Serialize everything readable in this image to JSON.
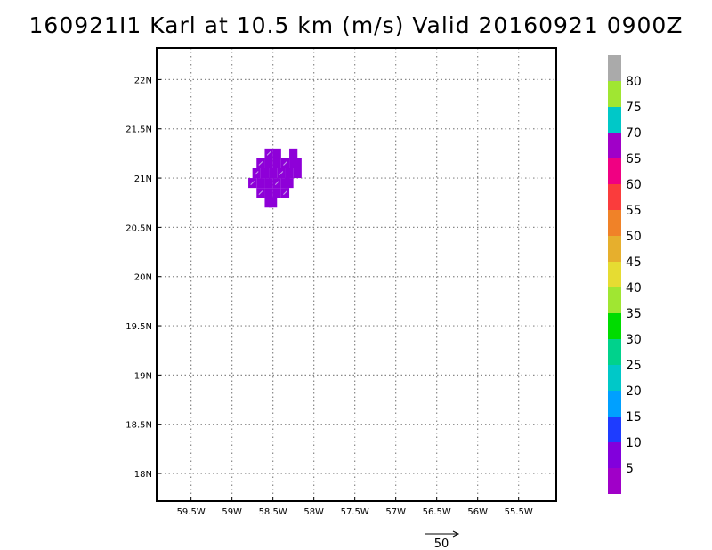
{
  "title": "160921I1 Karl at 10.5 km (m/s) Valid 20160921 0900Z",
  "chart_data": {
    "type": "heatmap",
    "title": "160921I1 Karl at 10.5 km (m/s) Valid 20160921 0900Z",
    "x_ticks": [
      "59.5W",
      "59W",
      "58.5W",
      "58W",
      "57.5W",
      "57W",
      "56.5W",
      "56W",
      "55.5W"
    ],
    "x_tick_values": [
      -59.5,
      -59.0,
      -58.5,
      -58.0,
      -57.5,
      -57.0,
      -56.5,
      -56.0,
      -55.5
    ],
    "y_ticks": [
      "22N",
      "21.5N",
      "21N",
      "20.5N",
      "20N",
      "19.5N",
      "19N",
      "18.5N",
      "18N"
    ],
    "y_tick_values": [
      22.0,
      21.5,
      21.0,
      20.5,
      20.0,
      19.5,
      19.0,
      18.5,
      18.0
    ],
    "xlim": [
      -59.92,
      -55.04
    ],
    "ylim": [
      17.72,
      22.32
    ],
    "grid": true,
    "colorbar": {
      "labels": [
        "5",
        "10",
        "15",
        "20",
        "25",
        "30",
        "35",
        "40",
        "45",
        "50",
        "55",
        "60",
        "65",
        "70",
        "75",
        "80"
      ],
      "colors": [
        "#a000c8",
        "#8200dc",
        "#1e3cff",
        "#00a0ff",
        "#00c8c8",
        "#00d28c",
        "#00dc00",
        "#a0e632",
        "#e6dc32",
        "#e6af2d",
        "#f08228",
        "#fa3c3c",
        "#f00082",
        "#a000c8",
        "#00c8c8",
        "#a0e632",
        "#aaaaaa"
      ]
    },
    "wind_field": {
      "value_range": "0-5 m/s",
      "color": "#8e00d8",
      "cells": [
        [
          -58.55,
          21.25
        ],
        [
          -58.45,
          21.25
        ],
        [
          -58.25,
          21.25
        ],
        [
          -58.65,
          21.15
        ],
        [
          -58.55,
          21.15
        ],
        [
          -58.45,
          21.15
        ],
        [
          -58.35,
          21.15
        ],
        [
          -58.25,
          21.15
        ],
        [
          -58.2,
          21.15
        ],
        [
          -58.7,
          21.05
        ],
        [
          -58.6,
          21.05
        ],
        [
          -58.5,
          21.05
        ],
        [
          -58.4,
          21.05
        ],
        [
          -58.3,
          21.05
        ],
        [
          -58.2,
          21.05
        ],
        [
          -58.75,
          20.95
        ],
        [
          -58.65,
          20.95
        ],
        [
          -58.55,
          20.95
        ],
        [
          -58.45,
          20.95
        ],
        [
          -58.35,
          20.95
        ],
        [
          -58.3,
          20.95
        ],
        [
          -58.65,
          20.85
        ],
        [
          -58.55,
          20.85
        ],
        [
          -58.45,
          20.85
        ],
        [
          -58.35,
          20.85
        ],
        [
          -58.55,
          20.75
        ],
        [
          -58.5,
          20.75
        ]
      ]
    },
    "reference_vector": {
      "value": "50"
    }
  }
}
